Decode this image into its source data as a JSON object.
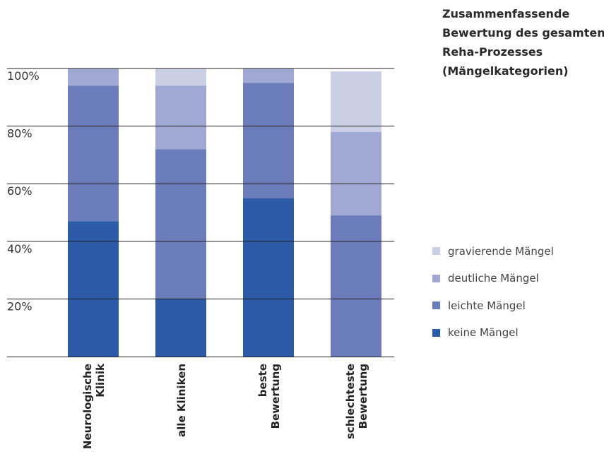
{
  "chart_data": {
    "type": "bar",
    "stacked": true,
    "title": [
      "Zusammenfassende",
      "Bewertung des gesamten",
      "Reha-Prozesses",
      "(Mängelkategorien)"
    ],
    "categories": [
      [
        "Neurologische",
        "Klinik"
      ],
      [
        "alle Kliniken"
      ],
      [
        "beste",
        "Bewertung"
      ],
      [
        "schlechteste",
        "Bewertung"
      ]
    ],
    "y_ticks": [
      "20%",
      "40%",
      "60%",
      "80%",
      "100%"
    ],
    "ylim": [
      0,
      100
    ],
    "grid": true,
    "legend_position": "right",
    "series": [
      {
        "name": "keine Mängel",
        "color": "#2b5ba6",
        "values": [
          47,
          20,
          55,
          0
        ]
      },
      {
        "name": "leichte Mängel",
        "color": "#6b7cba",
        "values": [
          47,
          52,
          40,
          49
        ]
      },
      {
        "name": "deutliche Mängel",
        "color": "#a0a8d4",
        "values": [
          6,
          22,
          5,
          29
        ]
      },
      {
        "name": "gravierende Mängel",
        "color": "#cbcfe6",
        "values": [
          0,
          6,
          0,
          21
        ]
      }
    ],
    "legend_order": [
      "gravierende Mängel",
      "deutliche Mängel",
      "leichte Mängel",
      "keine Mängel"
    ],
    "axis_color": "#222222"
  }
}
